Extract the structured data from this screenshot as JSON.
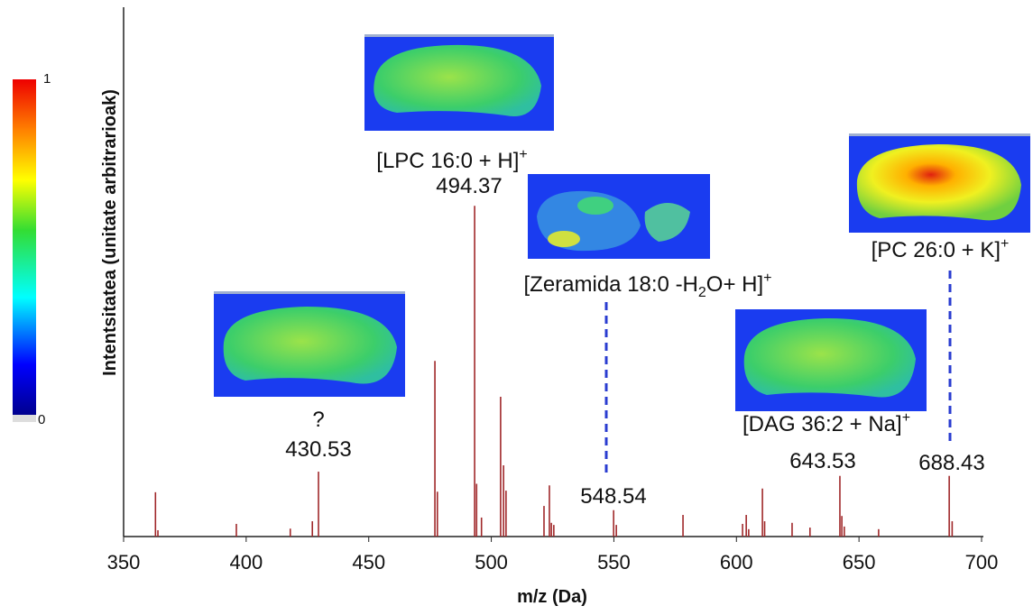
{
  "chart_data": {
    "type": "spectrum",
    "xlabel": "m/z (Da)",
    "ylabel": "Intentsitatea (unitate arbitrarioak)",
    "color": "#a0282a",
    "xlim": [
      350,
      700
    ],
    "xticks": [
      350,
      400,
      450,
      500,
      550,
      600,
      650,
      700
    ],
    "ylim": [
      0,
      100
    ],
    "colorbar_ticks": [
      0,
      1
    ],
    "x": [
      363,
      364,
      396,
      418,
      427,
      429.5,
      477,
      478,
      493.2,
      494,
      496,
      503.8,
      505,
      506,
      521.5,
      523.7,
      524.5,
      525.5,
      549.9,
      551,
      578.2,
      602.5,
      604,
      605,
      610.6,
      611.5,
      622.7,
      630,
      642.2,
      643,
      644,
      658,
      686.8,
      688
    ],
    "values": [
      8.4,
      1.2,
      2.4,
      1.5,
      2.9,
      12.3,
      33.3,
      8.5,
      62.7,
      10,
      3.6,
      26.5,
      13.5,
      8.7,
      5.8,
      9.7,
      2.6,
      2.2,
      5,
      2.2,
      4.1,
      2.4,
      4.1,
      1.4,
      9.1,
      2.9,
      2.6,
      1.7,
      11.5,
      3.9,
      1.9,
      1.4,
      11.5,
      2.9
    ],
    "annotations": [
      {
        "label": [
          {
            "text": "?"
          }
        ],
        "mz": "430.53"
      },
      {
        "label": [
          {
            "text": "[LPC 16:0 + H]"
          },
          {
            "sup": "+"
          }
        ],
        "mz": "494.37"
      },
      {
        "label": [
          {
            "text": "[Zeramida 18:0 -H"
          },
          {
            "sub": "2"
          },
          {
            "text": "O+ H]"
          },
          {
            "sup": "+"
          }
        ],
        "mz": "548.54"
      },
      {
        "label": [
          {
            "text": "[DAG 36:2 + Na]"
          },
          {
            "sup": "+"
          }
        ],
        "mz": "643.53"
      },
      {
        "label": [
          {
            "text": "[PC 26:0 + K]"
          },
          {
            "sup": "+"
          }
        ],
        "mz": "688.43"
      }
    ]
  }
}
